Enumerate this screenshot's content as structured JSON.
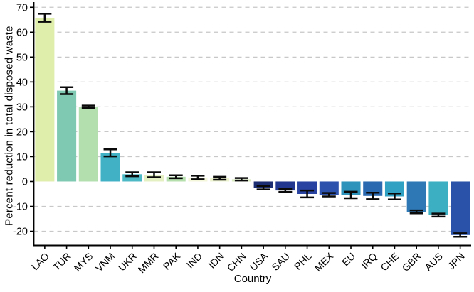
{
  "chart_data": {
    "type": "bar",
    "title": "",
    "xlabel": "Country",
    "ylabel": "Percent reduction in total disposed waste",
    "categories": [
      "LAO",
      "TUR",
      "MYS",
      "VNM",
      "UKR",
      "MMR",
      "PAK",
      "IND",
      "IDN",
      "CHN",
      "USA",
      "SAU",
      "PHL",
      "MEX",
      "EU",
      "IRQ",
      "CHE",
      "GBR",
      "AUS",
      "JPN"
    ],
    "values": [
      65.8,
      36.5,
      30.0,
      11.5,
      2.9,
      2.7,
      1.9,
      1.6,
      1.3,
      0.9,
      -2.5,
      -3.6,
      -5.0,
      -5.3,
      -5.4,
      -5.8,
      -6.0,
      -12.2,
      -13.5,
      -21.5
    ],
    "errors": [
      1.6,
      1.4,
      0.5,
      1.4,
      0.8,
      1.0,
      0.6,
      0.7,
      0.6,
      0.5,
      0.7,
      0.6,
      1.4,
      0.7,
      1.3,
      1.3,
      1.2,
      0.6,
      0.6,
      0.7
    ],
    "bar_colors": [
      "#dfeeab",
      "#7fc9b2",
      "#b3dfae",
      "#41b2c6",
      "#4db9c5",
      "#e4f0c1",
      "#b6dfae",
      "#f4f7da",
      "#eef4cf",
      "#dcecc2",
      "#1d2d72",
      "#21368e",
      "#2742a1",
      "#2b51ad",
      "#2e93bb",
      "#2a68af",
      "#31a1c3",
      "#2d78b5",
      "#3cb0c2",
      "#2a52a8"
    ],
    "yticks": [
      -20,
      -10,
      0,
      10,
      20,
      30,
      40,
      50,
      60,
      70
    ],
    "ylim": [
      -25.7,
      71.5
    ],
    "grid": "horizontal dashed at labeled ticks (zero line hidden)",
    "legend": "none",
    "error_bars": "black caps, symmetric"
  },
  "style": {
    "background": "#ffffff",
    "grid_color": "#c8c8c8",
    "axis_color": "#000000",
    "tick_label_color": "#000000",
    "error_bar_color": "#0a0a0a"
  }
}
